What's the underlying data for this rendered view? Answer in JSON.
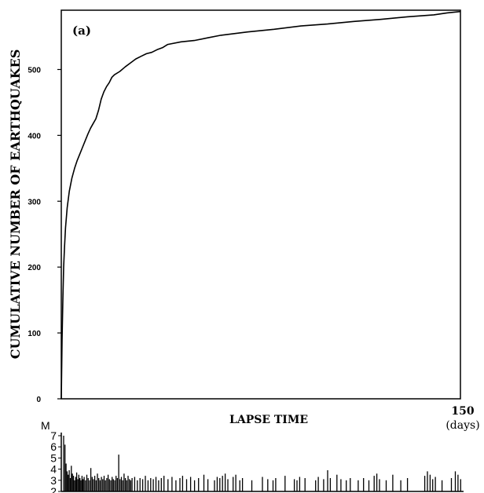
{
  "chart_data": [
    {
      "type": "line",
      "panel_label": "(a)",
      "xlabel": "LAPSE TIME",
      "ylabel": "CUMULATIVE NUMBER OF EARTHQUAKES",
      "x_tick_labels": [
        "150",
        "(days)"
      ],
      "xlim": [
        0,
        150
      ],
      "ylim": [
        0,
        590
      ],
      "y_ticks": [
        "0",
        "100",
        "200",
        "300",
        "400",
        "500"
      ],
      "grid": false,
      "series": [
        {
          "x": [
            0,
            0.3,
            0.6,
            0.9,
            1.2,
            1.6,
            2.2,
            3,
            4,
            5,
            6,
            7,
            8,
            9,
            10,
            11,
            12,
            13,
            14,
            15,
            16,
            17,
            18,
            19,
            20,
            22,
            24,
            26,
            28,
            30,
            32,
            34,
            36,
            38,
            40,
            45,
            50,
            55,
            60,
            70,
            80,
            90,
            100,
            110,
            120,
            130,
            140,
            145,
            150
          ],
          "y": [
            0,
            90,
            150,
            200,
            230,
            260,
            290,
            315,
            335,
            350,
            362,
            372,
            382,
            392,
            402,
            411,
            418,
            425,
            438,
            455,
            466,
            474,
            480,
            488,
            492,
            497,
            504,
            510,
            516,
            520,
            524,
            526,
            530,
            533,
            538,
            542,
            544,
            548,
            552,
            557,
            561,
            566,
            569,
            573,
            576,
            580,
            583,
            586,
            588
          ]
        }
      ]
    },
    {
      "type": "bar",
      "ylabel": "M",
      "xlim": [
        0,
        150
      ],
      "ylim": [
        2,
        7
      ],
      "y_ticks": [
        "2",
        "3",
        "4",
        "5",
        "6",
        "7"
      ],
      "events": [
        {
          "x": 0.3,
          "m": 7.0
        },
        {
          "x": 0.8,
          "m": 6.2
        },
        {
          "x": 1.2,
          "m": 4.5
        },
        {
          "x": 1.6,
          "m": 3.8
        },
        {
          "x": 2.0,
          "m": 3.5
        },
        {
          "x": 2.4,
          "m": 3.9
        },
        {
          "x": 2.8,
          "m": 3.2
        },
        {
          "x": 3.2,
          "m": 4.3
        },
        {
          "x": 3.6,
          "m": 3.6
        },
        {
          "x": 4.0,
          "m": 3.4
        },
        {
          "x": 4.4,
          "m": 3.0
        },
        {
          "x": 4.8,
          "m": 3.3
        },
        {
          "x": 5.2,
          "m": 3.7
        },
        {
          "x": 5.6,
          "m": 3.1
        },
        {
          "x": 6.0,
          "m": 3.5
        },
        {
          "x": 6.4,
          "m": 3.2
        },
        {
          "x": 6.8,
          "m": 3.0
        },
        {
          "x": 7.2,
          "m": 3.4
        },
        {
          "x": 7.6,
          "m": 3.1
        },
        {
          "x": 8.0,
          "m": 3.3
        },
        {
          "x": 8.5,
          "m": 3.0
        },
        {
          "x": 9.0,
          "m": 3.5
        },
        {
          "x": 9.5,
          "m": 3.2
        },
        {
          "x": 10.0,
          "m": 3.0
        },
        {
          "x": 10.5,
          "m": 4.1
        },
        {
          "x": 11.0,
          "m": 3.3
        },
        {
          "x": 11.5,
          "m": 3.1
        },
        {
          "x": 12.0,
          "m": 3.4
        },
        {
          "x": 12.5,
          "m": 3.0
        },
        {
          "x": 13.0,
          "m": 3.6
        },
        {
          "x": 13.5,
          "m": 3.2
        },
        {
          "x": 14.0,
          "m": 3.0
        },
        {
          "x": 14.5,
          "m": 3.3
        },
        {
          "x": 15.0,
          "m": 3.1
        },
        {
          "x": 15.5,
          "m": 3.4
        },
        {
          "x": 16.0,
          "m": 3.0
        },
        {
          "x": 16.5,
          "m": 3.2
        },
        {
          "x": 17.0,
          "m": 3.5
        },
        {
          "x": 17.5,
          "m": 3.1
        },
        {
          "x": 18.0,
          "m": 3.0
        },
        {
          "x": 18.5,
          "m": 3.3
        },
        {
          "x": 19.0,
          "m": 3.1
        },
        {
          "x": 19.5,
          "m": 3.0
        },
        {
          "x": 20.0,
          "m": 3.4
        },
        {
          "x": 20.5,
          "m": 3.2
        },
        {
          "x": 21.0,
          "m": 5.3
        },
        {
          "x": 21.5,
          "m": 3.1
        },
        {
          "x": 22.0,
          "m": 3.3
        },
        {
          "x": 22.5,
          "m": 3.0
        },
        {
          "x": 23.0,
          "m": 3.6
        },
        {
          "x": 23.5,
          "m": 3.2
        },
        {
          "x": 24.0,
          "m": 3.0
        },
        {
          "x": 24.5,
          "m": 3.4
        },
        {
          "x": 25.0,
          "m": 3.1
        },
        {
          "x": 25.5,
          "m": 3.0
        },
        {
          "x": 26.0,
          "m": 3.2
        },
        {
          "x": 27.0,
          "m": 3.3
        },
        {
          "x": 28.0,
          "m": 3.0
        },
        {
          "x": 29.0,
          "m": 3.2
        },
        {
          "x": 30.0,
          "m": 3.1
        },
        {
          "x": 31.0,
          "m": 3.4
        },
        {
          "x": 32.0,
          "m": 3.0
        },
        {
          "x": 33.0,
          "m": 3.2
        },
        {
          "x": 34.0,
          "m": 3.1
        },
        {
          "x": 35.0,
          "m": 3.3
        },
        {
          "x": 36.0,
          "m": 3.0
        },
        {
          "x": 37.0,
          "m": 3.2
        },
        {
          "x": 38.0,
          "m": 3.4
        },
        {
          "x": 39.5,
          "m": 3.1
        },
        {
          "x": 41.0,
          "m": 3.3
        },
        {
          "x": 42.5,
          "m": 3.0
        },
        {
          "x": 44.0,
          "m": 3.2
        },
        {
          "x": 45.0,
          "m": 3.4
        },
        {
          "x": 46.5,
          "m": 3.1
        },
        {
          "x": 48.0,
          "m": 3.3
        },
        {
          "x": 49.5,
          "m": 3.0
        },
        {
          "x": 51.0,
          "m": 3.2
        },
        {
          "x": 53.0,
          "m": 3.5
        },
        {
          "x": 54.5,
          "m": 3.1
        },
        {
          "x": 57.0,
          "m": 3.0
        },
        {
          "x": 58.0,
          "m": 3.3
        },
        {
          "x": 59.0,
          "m": 3.2
        },
        {
          "x": 60.0,
          "m": 3.4
        },
        {
          "x": 61.0,
          "m": 3.6
        },
        {
          "x": 62.0,
          "m": 3.1
        },
        {
          "x": 64.0,
          "m": 3.3
        },
        {
          "x": 65.0,
          "m": 3.5
        },
        {
          "x": 66.5,
          "m": 3.0
        },
        {
          "x": 67.5,
          "m": 3.2
        },
        {
          "x": 71.0,
          "m": 3.0
        },
        {
          "x": 75.0,
          "m": 3.3
        },
        {
          "x": 77.0,
          "m": 3.1
        },
        {
          "x": 79.0,
          "m": 3.0
        },
        {
          "x": 80.0,
          "m": 3.2
        },
        {
          "x": 83.5,
          "m": 3.4
        },
        {
          "x": 87.0,
          "m": 3.1
        },
        {
          "x": 88.0,
          "m": 3.0
        },
        {
          "x": 89.0,
          "m": 3.3
        },
        {
          "x": 91.0,
          "m": 3.2
        },
        {
          "x": 95.0,
          "m": 3.0
        },
        {
          "x": 96.0,
          "m": 3.3
        },
        {
          "x": 98.0,
          "m": 3.1
        },
        {
          "x": 99.5,
          "m": 3.9
        },
        {
          "x": 100.5,
          "m": 3.2
        },
        {
          "x": 103.0,
          "m": 3.5
        },
        {
          "x": 104.5,
          "m": 3.1
        },
        {
          "x": 106.5,
          "m": 3.0
        },
        {
          "x": 108.0,
          "m": 3.2
        },
        {
          "x": 111.0,
          "m": 3.0
        },
        {
          "x": 113.0,
          "m": 3.2
        },
        {
          "x": 115.0,
          "m": 3.0
        },
        {
          "x": 117.0,
          "m": 3.4
        },
        {
          "x": 118.0,
          "m": 3.6
        },
        {
          "x": 119.0,
          "m": 3.1
        },
        {
          "x": 121.5,
          "m": 3.0
        },
        {
          "x": 124.0,
          "m": 3.5
        },
        {
          "x": 127.0,
          "m": 3.0
        },
        {
          "x": 129.5,
          "m": 3.2
        },
        {
          "x": 136.0,
          "m": 3.4
        },
        {
          "x": 137.0,
          "m": 3.8
        },
        {
          "x": 138.0,
          "m": 3.5
        },
        {
          "x": 139.0,
          "m": 3.1
        },
        {
          "x": 140.0,
          "m": 3.3
        },
        {
          "x": 142.5,
          "m": 3.0
        },
        {
          "x": 146.0,
          "m": 3.2
        },
        {
          "x": 147.5,
          "m": 3.8
        },
        {
          "x": 148.5,
          "m": 3.5
        },
        {
          "x": 149.5,
          "m": 3.1
        }
      ]
    }
  ]
}
